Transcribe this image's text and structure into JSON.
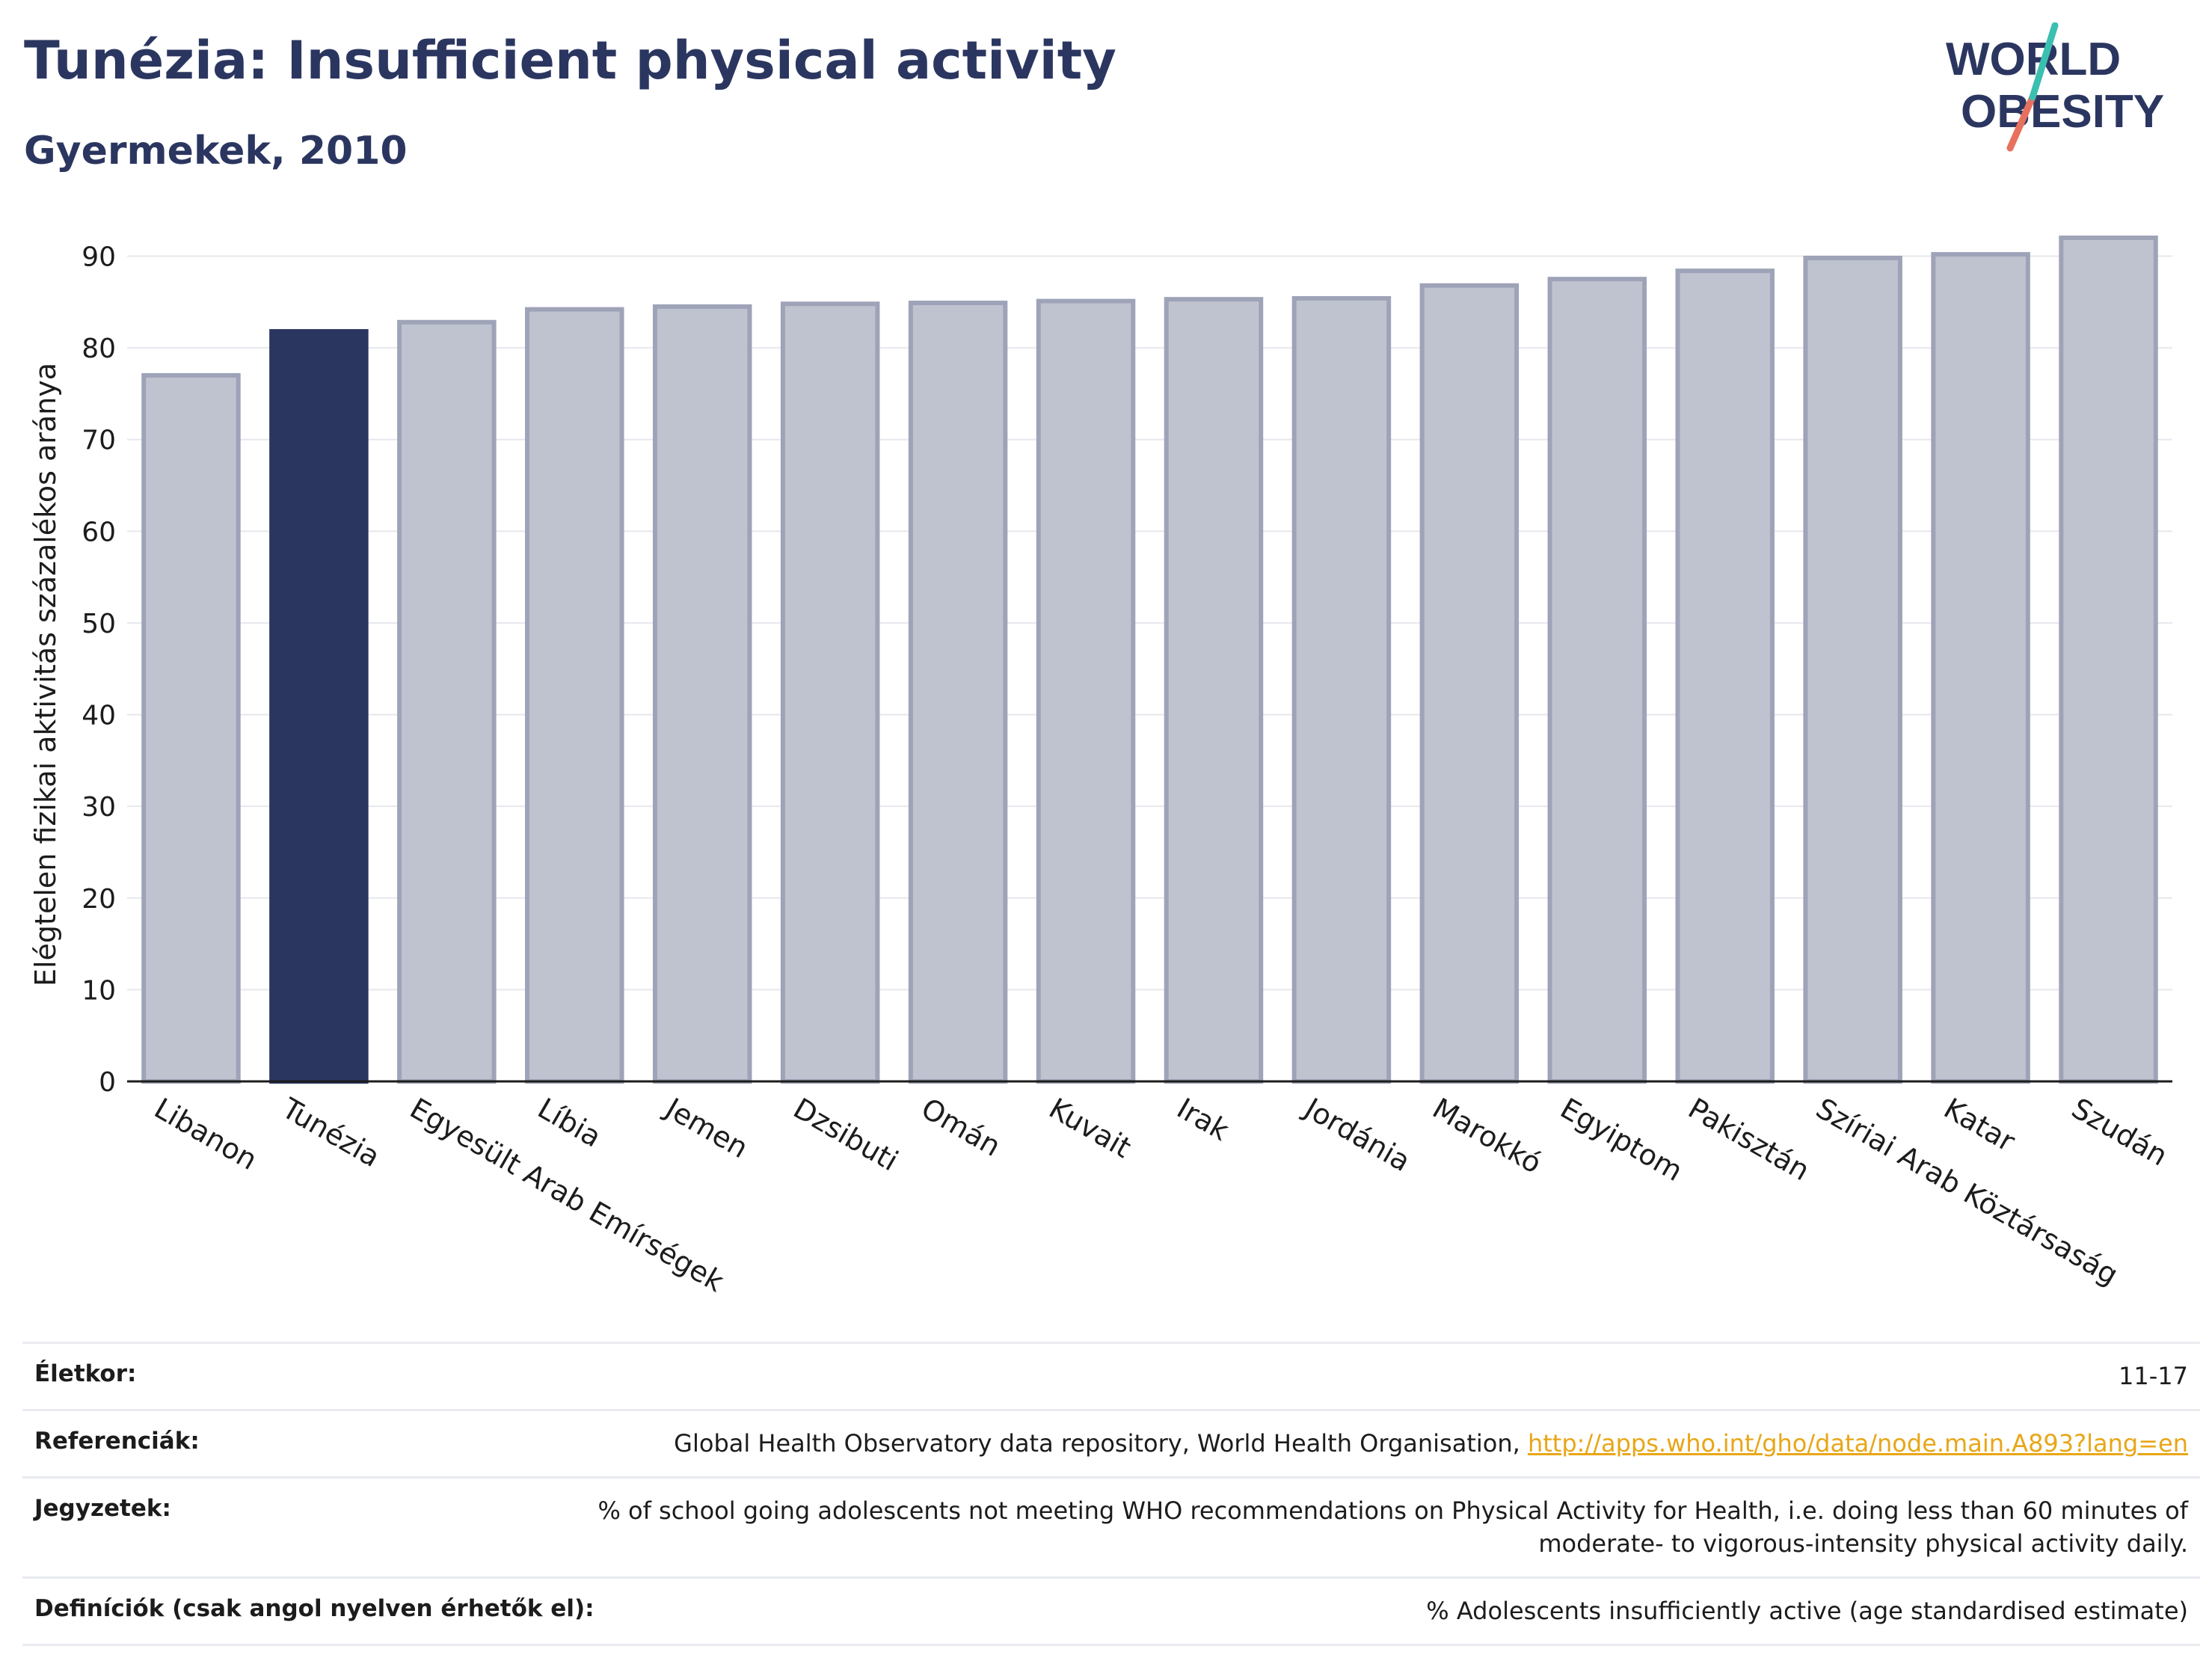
{
  "header": {
    "title": "Tunézia: Insufficient physical activity",
    "subtitle": "Gyermekek, 2010"
  },
  "logo": {
    "line1": "WORLD",
    "line2": "OBESITY",
    "accent_teal": "#3bbfb0",
    "accent_red": "#e8705e"
  },
  "colors": {
    "highlight": "#2b3660",
    "bar_fill": "#bfc3d0",
    "bar_stroke": "#9ea3b8"
  },
  "chart_data": {
    "type": "bar",
    "categories": [
      "Libanon",
      "Tunézia",
      "Egyesült Arab Emírségek",
      "Líbia",
      "Jemen",
      "Dzsibuti",
      "Omán",
      "Kuvait",
      "Irak",
      "Jordánia",
      "Marokkó",
      "Egyiptom",
      "Pakisztán",
      "Szíriai Arab Köztársaság",
      "Katar",
      "Szudán"
    ],
    "values": [
      77,
      81.8,
      82.8,
      84.2,
      84.5,
      84.8,
      84.9,
      85.1,
      85.3,
      85.4,
      86.8,
      87.5,
      88.4,
      89.8,
      90.2,
      92
    ],
    "highlight": "Tunézia",
    "ylabel": "Elégtelen fizikai aktivitás százalékos aránya",
    "ylim": [
      0,
      92
    ],
    "yticks": [
      0,
      10,
      20,
      30,
      40,
      50,
      60,
      70,
      80,
      90
    ],
    "grid": true
  },
  "notes": [
    {
      "label": "Életkor:",
      "value": "11-17"
    },
    {
      "label": "Referenciák:",
      "value": "Global Health Observatory data repository, World Health Organisation, ",
      "link": "http://apps.who.int/gho/data/node.main.A893?lang=en"
    },
    {
      "label": "Jegyzetek:",
      "value": "% of school going adolescents not meeting WHO recommendations on Physical Activity for Health, i.e. doing less than 60 minutes of",
      "value2": "moderate- to vigorous-intensity physical activity daily."
    },
    {
      "label": "Definíciók (csak angol nyelven érhetők el):",
      "value": "% Adolescents insufficiently active (age standardised estimate)"
    }
  ]
}
